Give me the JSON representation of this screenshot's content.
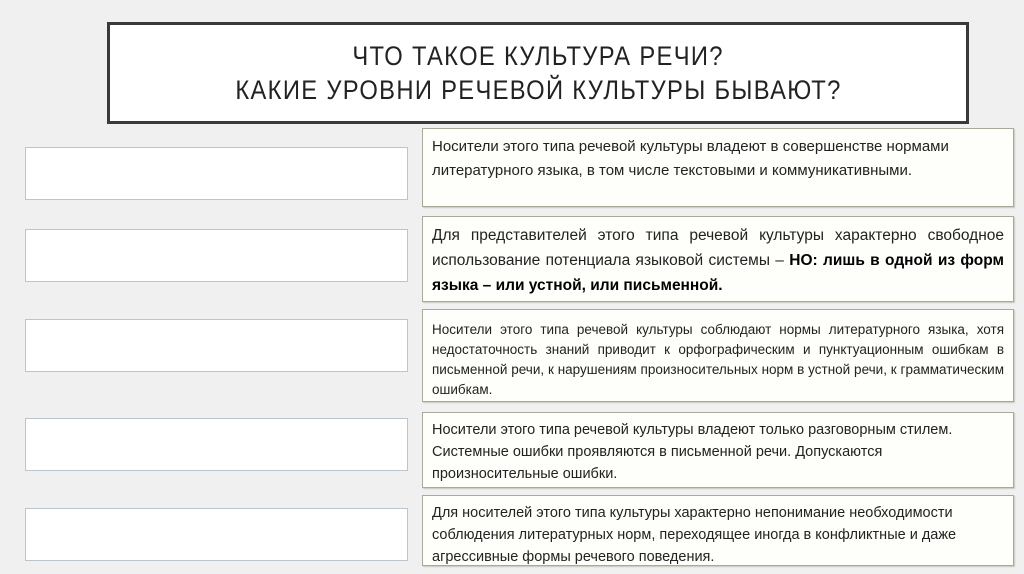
{
  "title": {
    "line1": "ЧТО ТАКОЕ КУЛЬТУРА РЕЧИ?",
    "line2": "КАКИЕ УРОВНИ РЕЧЕВОЙ КУЛЬТУРЫ БЫВАЮТ?"
  },
  "descriptions": [
    {
      "text": "Носители этого типа речевой культуры владеют в совершенстве нормами литературного языка, в том числе текстовыми и коммуникативными."
    },
    {
      "text": "Для представителей этого типа речевой культуры характерно свободное использование потенциала языковой системы – ",
      "bold": "НО: лишь в одной из форм языка – или устной, или письменной."
    },
    {
      "text": "Носители этого типа речевой культуры соблюдают нормы литературного языка, хотя недостаточность знаний приводит к орфографическим и пунктуационным ошибкам в письменной речи, к нарушениям произносительных норм в устной речи, к грамматическим ошибкам."
    },
    {
      "text": "Носители этого типа речевой культуры владеют только разговорным стилем. Системные ошибки проявляются в письменной речи. Допускаются произносительные ошибки."
    },
    {
      "text": "Для носителей этого типа культуры характерно непонимание необходимости соблюдения литературных норм, переходящее иногда в конфликтные и даже агрессивные формы речевого поведения."
    }
  ]
}
